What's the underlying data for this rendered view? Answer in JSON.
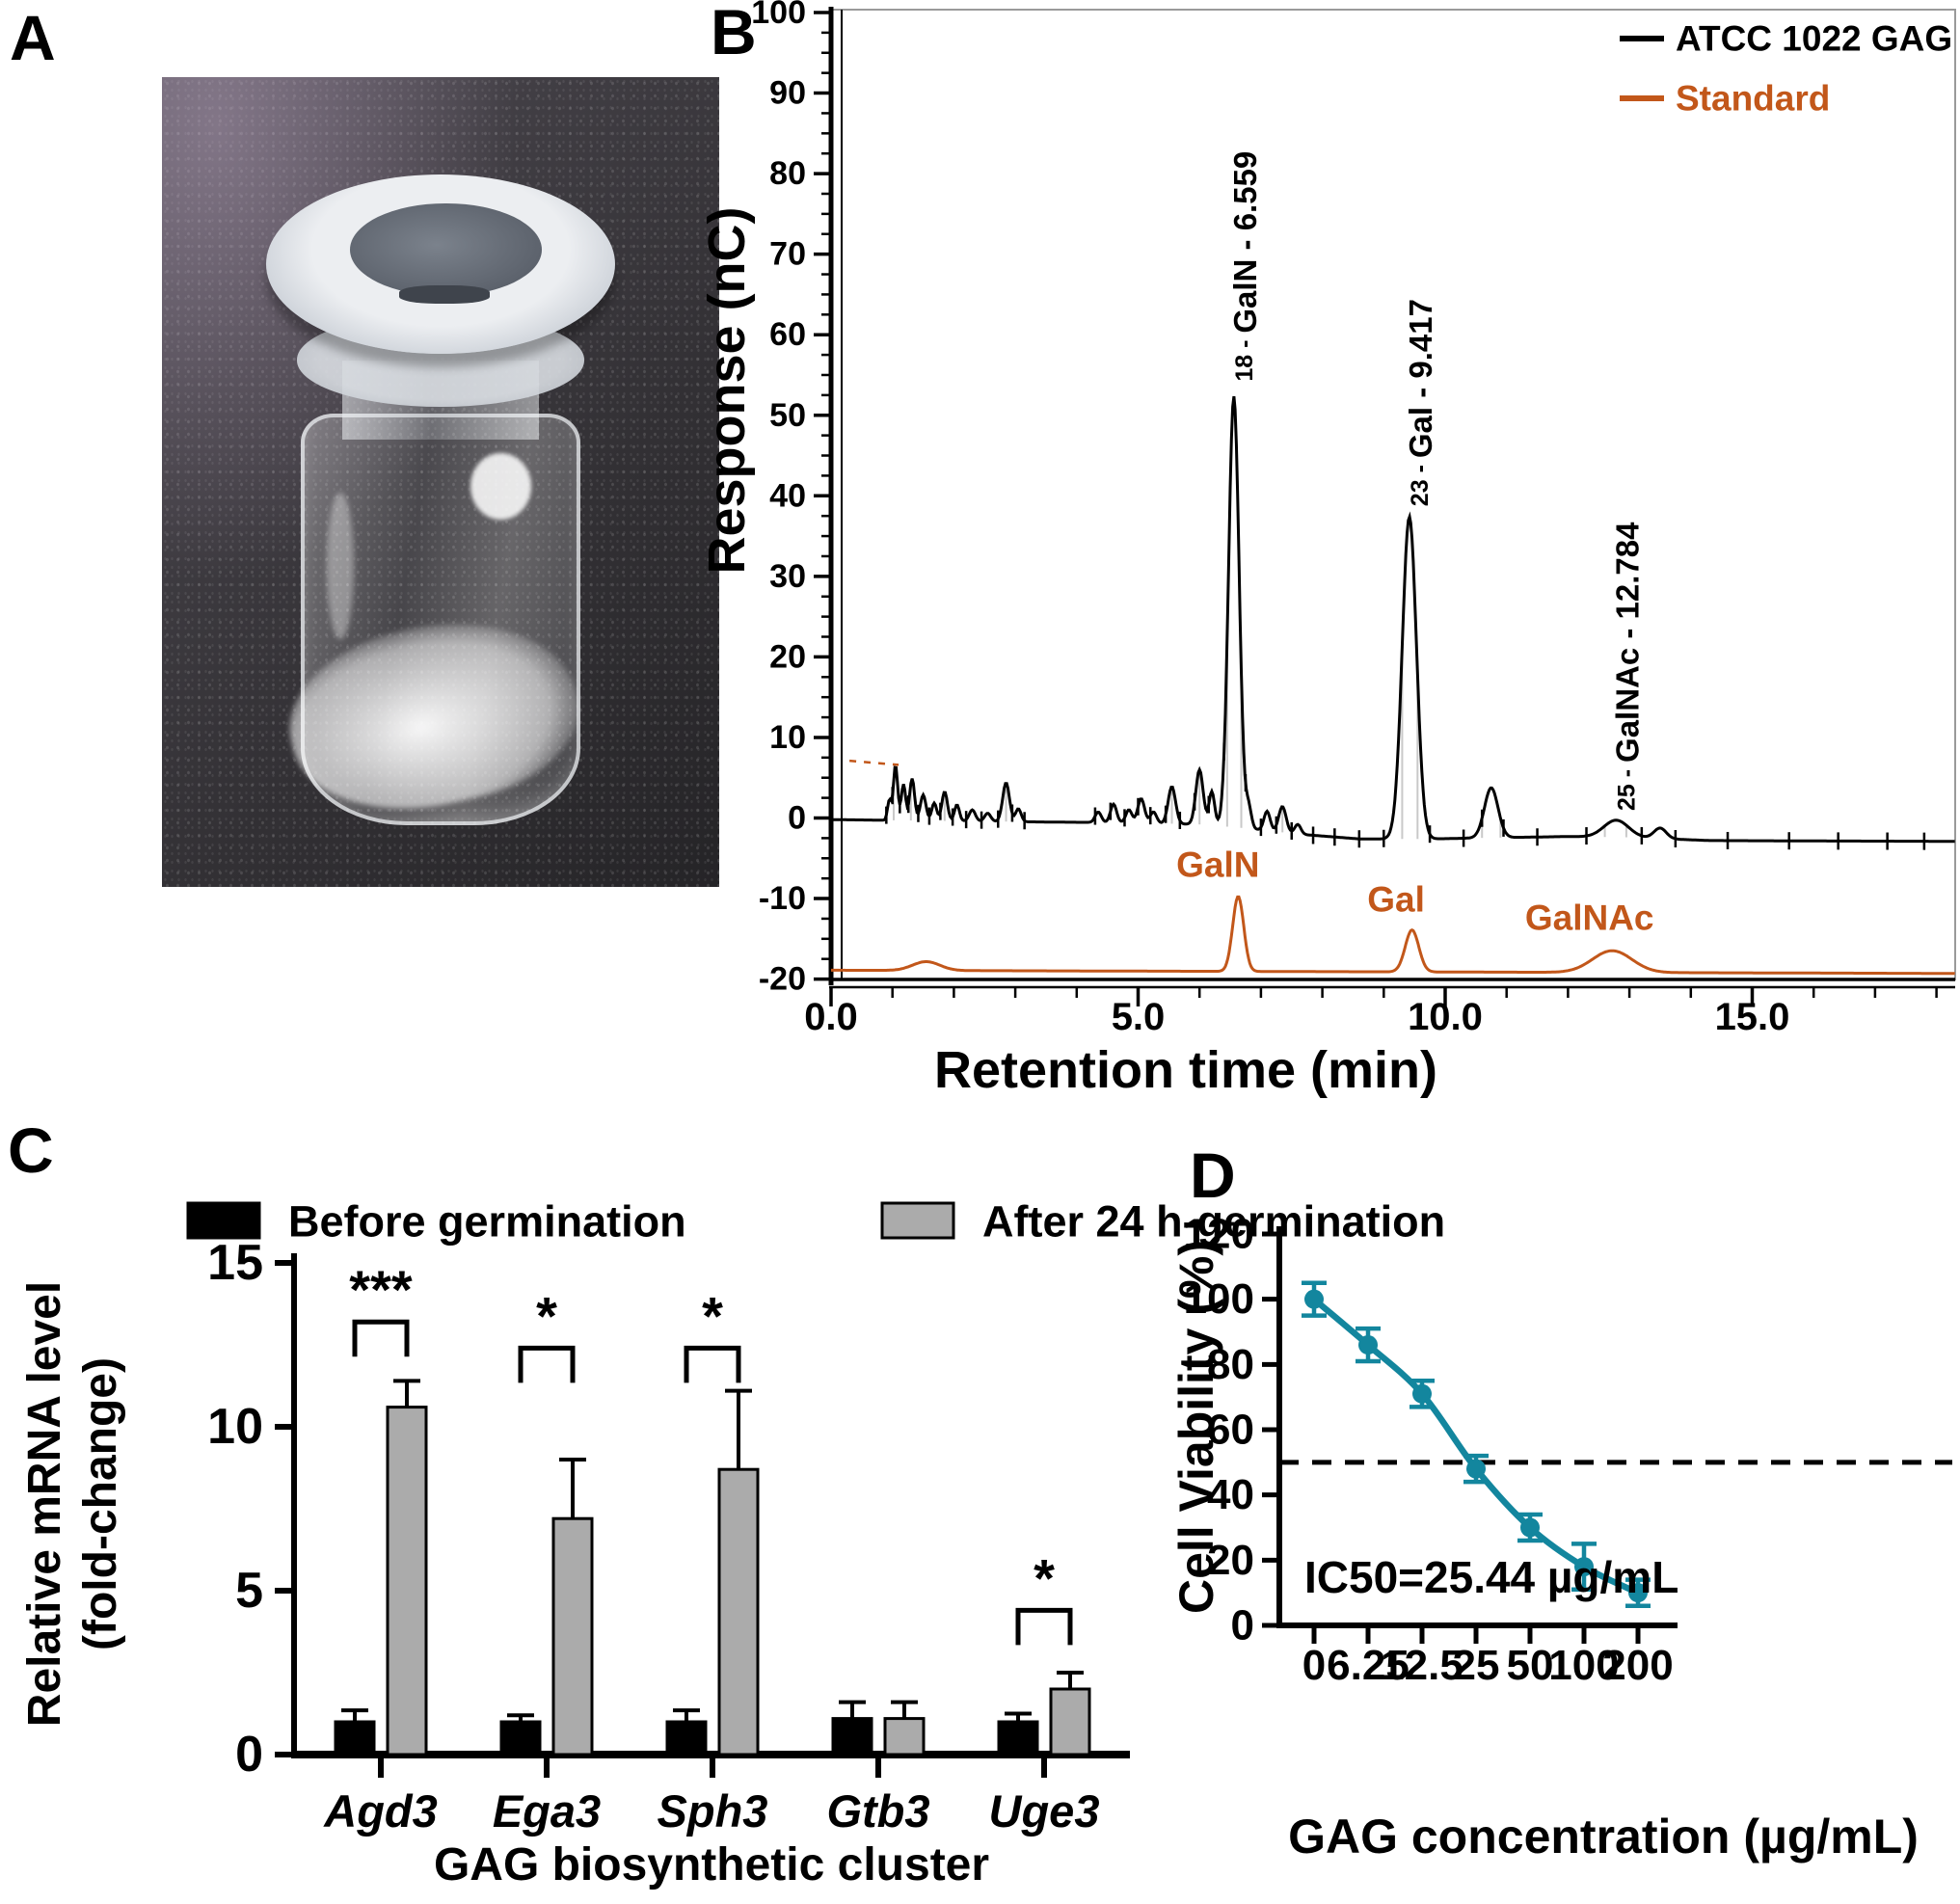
{
  "figure_labels": {
    "a": "A",
    "b": "B",
    "c": "C",
    "d": "D"
  },
  "chart_data": [
    {
      "type": "line",
      "panel": "B",
      "xlabel": "Retention time (min)",
      "ylabel": "Response (nC)",
      "xlim": [
        0,
        18.3
      ],
      "ylim": [
        -20,
        100
      ],
      "x_major_ticks": [
        0,
        5,
        10,
        15
      ],
      "x_tick_labels": [
        "0.0",
        "5.0",
        "10.0",
        "15.0"
      ],
      "x_minor_step": 1,
      "y_major_step": 10,
      "y_minor_step": 2.5,
      "legend": [
        {
          "label": "ATCC 1022 GAG",
          "color": "#000000"
        },
        {
          "label": "Standard",
          "color": "#C2571A"
        }
      ],
      "series": [
        {
          "name": "ATCC 1022 GAG",
          "color": "#000000",
          "baseline": [
            [
              0,
              -0.2
            ],
            [
              3.5,
              -0.5
            ],
            [
              5,
              -0.6
            ],
            [
              6,
              -0.8
            ],
            [
              6.8,
              -1.3
            ],
            [
              7.6,
              -2.0
            ],
            [
              8.6,
              -2.6
            ],
            [
              9.8,
              -2.6
            ],
            [
              10.4,
              -2.5
            ],
            [
              12,
              -2.3
            ],
            [
              13,
              -2.4
            ],
            [
              14.3,
              -2.8
            ],
            [
              16,
              -2.85
            ],
            [
              18.3,
              -2.9
            ]
          ],
          "peaks": [
            [
              0.95,
              2.5,
              0.03
            ],
            [
              1.05,
              6.8,
              0.035
            ],
            [
              1.18,
              4.5,
              0.035
            ],
            [
              1.32,
              5.2,
              0.04
            ],
            [
              1.5,
              3.2,
              0.045
            ],
            [
              1.68,
              2.2,
              0.04
            ],
            [
              1.85,
              3.6,
              0.045
            ],
            [
              2.05,
              2.0,
              0.04
            ],
            [
              2.3,
              1.4,
              0.05
            ],
            [
              2.55,
              1.0,
              0.05
            ],
            [
              2.85,
              4.8,
              0.055
            ],
            [
              3.05,
              1.6,
              0.045
            ],
            [
              4.35,
              1.3,
              0.05
            ],
            [
              4.6,
              2.3,
              0.05
            ],
            [
              4.85,
              1.6,
              0.05
            ],
            [
              5.05,
              3.0,
              0.055
            ],
            [
              5.25,
              1.4,
              0.05
            ],
            [
              5.55,
              4.6,
              0.06
            ],
            [
              6.0,
              6.8,
              0.06
            ],
            [
              6.2,
              4.2,
              0.045
            ],
            [
              6.559,
              53.5,
              0.085
            ],
            [
              6.8,
              2.5,
              0.045
            ],
            [
              7.1,
              2.4,
              0.05
            ],
            [
              7.35,
              3.2,
              0.06
            ],
            [
              7.6,
              1.2,
              0.05
            ],
            [
              9.417,
              40,
              0.115
            ],
            [
              10.75,
              6.2,
              0.11
            ],
            [
              12.784,
              2.1,
              0.2
            ],
            [
              13.5,
              1.3,
              0.1
            ]
          ],
          "marks": [
            0.9,
            1.0,
            1.12,
            1.26,
            1.42,
            1.6,
            1.78,
            1.98,
            2.2,
            2.45,
            2.72,
            2.95,
            3.15,
            4.3,
            4.55,
            4.78,
            5.0,
            5.2,
            5.45,
            5.68,
            5.92,
            6.15,
            6.4,
            6.75,
            7.0,
            7.25,
            7.5,
            7.85,
            8.2,
            8.6,
            9.0,
            9.75,
            10.3,
            10.6,
            10.95,
            11.5,
            12.3,
            13.2,
            13.75,
            14.6,
            15.6,
            16.4,
            17.2,
            17.8
          ],
          "gray_drops": [
            1.02,
            1.3,
            1.85,
            2.85,
            5.55,
            6.0,
            6.45,
            6.68,
            7.35,
            9.3,
            9.55,
            10.6,
            10.9,
            12.6,
            12.95
          ],
          "peak_annotations": [
            {
              "peak_number": "18",
              "analyte": "GalN",
              "retention_time": "6.559",
              "t": 6.559,
              "apex": 53
            },
            {
              "peak_number": "23",
              "analyte": "Gal",
              "retention_time": "9.417",
              "t": 9.417,
              "apex": 37.5
            },
            {
              "peak_number": "25",
              "analyte": "GalNAc",
              "retention_time": "12.784",
              "t": 12.784,
              "apex": -0.3
            }
          ]
        },
        {
          "name": "Standard",
          "color": "#C2571A",
          "baseline": [
            [
              0,
              -18.9
            ],
            [
              18.3,
              -19.3
            ]
          ],
          "peaks": [
            [
              1.55,
              1.1,
              0.22
            ],
            [
              6.63,
              9.3,
              0.09
            ],
            [
              9.46,
              5.2,
              0.11
            ],
            [
              12.72,
              2.7,
              0.32
            ]
          ],
          "start_dash": {
            "from": [
              0.3,
              7.1
            ],
            "to": [
              1.1,
              6.6
            ]
          },
          "labels": [
            {
              "text": "GalN",
              "t": 6.3,
              "v": -7.3
            },
            {
              "text": "Gal",
              "t": 9.2,
              "v": -11.6
            },
            {
              "text": "GalNAc",
              "t": 12.35,
              "v": -13.9
            }
          ]
        }
      ]
    },
    {
      "type": "bar",
      "panel": "C",
      "categories": [
        "Agd3",
        "Ega3",
        "Sph3",
        "Gtb3",
        "Uge3"
      ],
      "xlabel": "GAG biosynthetic cluster",
      "ylabel_lines": [
        "Relative mRNA level",
        "(fold-change)"
      ],
      "ylim": [
        0,
        15
      ],
      "yticks": [
        0,
        5,
        10,
        15
      ],
      "series": [
        {
          "name": "Before germination",
          "color": "#000000",
          "values": [
            1.0,
            1.0,
            1.0,
            1.1,
            1.0
          ],
          "errors": [
            0.35,
            0.2,
            0.35,
            0.5,
            0.25
          ]
        },
        {
          "name": "After 24 h-germination",
          "color": "#ABABAB",
          "values": [
            10.6,
            7.2,
            8.7,
            1.1,
            2.0
          ],
          "errors": [
            0.8,
            1.8,
            2.4,
            0.5,
            0.5
          ]
        }
      ],
      "significance": [
        {
          "category": "Agd3",
          "label": "***",
          "bracket_y": 13.2
        },
        {
          "category": "Ega3",
          "label": "*",
          "bracket_y": 12.4
        },
        {
          "category": "Sph3",
          "label": "*",
          "bracket_y": 12.4
        },
        {
          "category": "Uge3",
          "label": "*",
          "bracket_y": 4.4
        }
      ]
    },
    {
      "type": "line",
      "panel": "D",
      "categories": [
        "0",
        "6.25",
        "12.5",
        "25",
        "50",
        "100",
        "200"
      ],
      "values": [
        100,
        86,
        71,
        48,
        30,
        18,
        10
      ],
      "errors": [
        5,
        5,
        4,
        4,
        4,
        7,
        4
      ],
      "xlabel": "GAG concentration (µg/mL)",
      "ylabel": "Cell Viability (%)",
      "ylim": [
        0,
        120
      ],
      "yticks": [
        0,
        20,
        40,
        60,
        80,
        100,
        120
      ],
      "dashed_line_y": 50,
      "annotation": "IC50=25.44 µg/mL",
      "line_color": "#13869E"
    }
  ]
}
